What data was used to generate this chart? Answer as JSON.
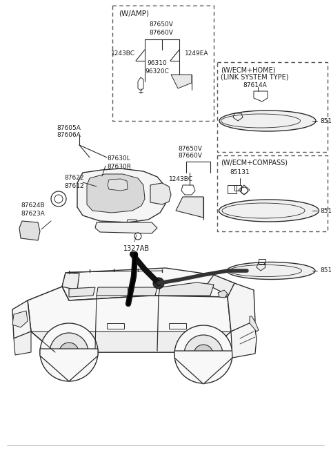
{
  "bg_color": "#ffffff",
  "line_color": "#2a2a2a",
  "text_color": "#1a1a1a",
  "dash_color": "#555555",
  "wamp_label": "(W/AMP)",
  "wecm_home_label1": "(W/ECM+HOME)",
  "wecm_home_label2": "(LINK SYSTEM TYPE)",
  "wecm_compass_label": "(W/ECM+COMPASS)",
  "figsize": [
    4.8,
    6.53
  ],
  "dpi": 100
}
